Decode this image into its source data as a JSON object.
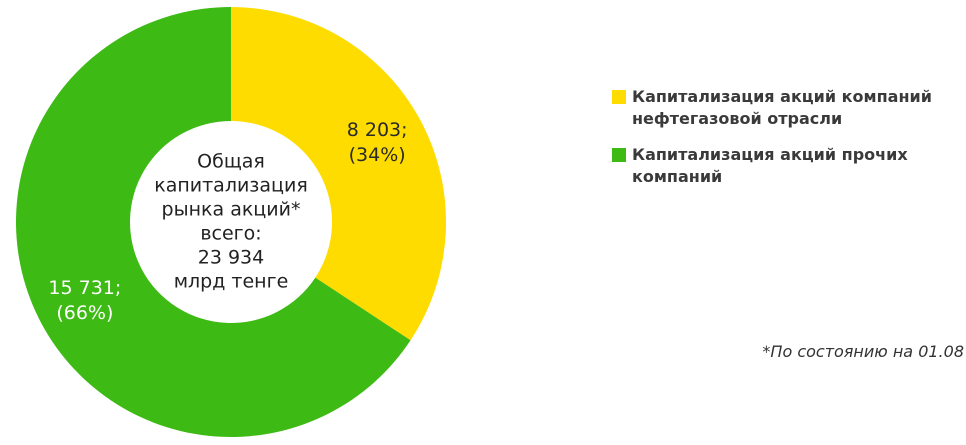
{
  "chart_data": {
    "type": "pie",
    "categories": [
      "Капитализация акций компаний нефтегазовой отрасли",
      "Капитализация акций прочих компаний"
    ],
    "values": [
      8203,
      15731
    ],
    "value_labels": [
      "8 203; (34%)",
      "15 731; (66%)"
    ],
    "colors": [
      "#fedc00",
      "#3dba14"
    ],
    "center_label": [
      "Общая",
      "капитализация",
      "рынка акций*",
      "всего:",
      "23 934",
      "млрд тенге"
    ],
    "footnote": "*По состоянию на 01.08",
    "legend": "right"
  }
}
